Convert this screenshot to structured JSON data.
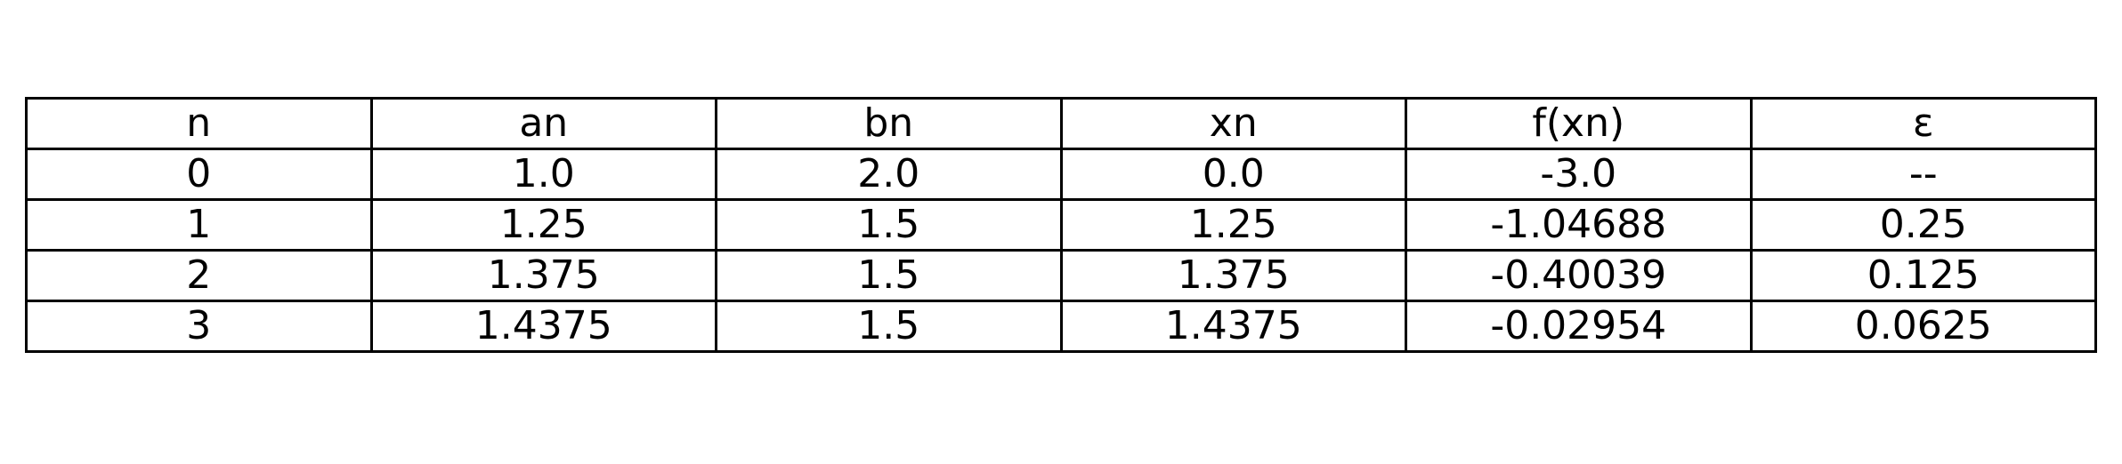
{
  "chart_data": {
    "type": "table",
    "columns": [
      "n",
      "an",
      "bn",
      "xn",
      "f(xn)",
      "ε"
    ],
    "rows": [
      [
        "0",
        "1.0",
        "2.0",
        "0.0",
        "-3.0",
        "--"
      ],
      [
        "1",
        "1.25",
        "1.5",
        "1.25",
        "-1.04688",
        "0.25"
      ],
      [
        "2",
        "1.375",
        "1.5",
        "1.375",
        "-0.40039",
        "0.125"
      ],
      [
        "3",
        "1.4375",
        "1.5",
        "1.4375",
        "-0.02954",
        "0.0625"
      ]
    ]
  }
}
